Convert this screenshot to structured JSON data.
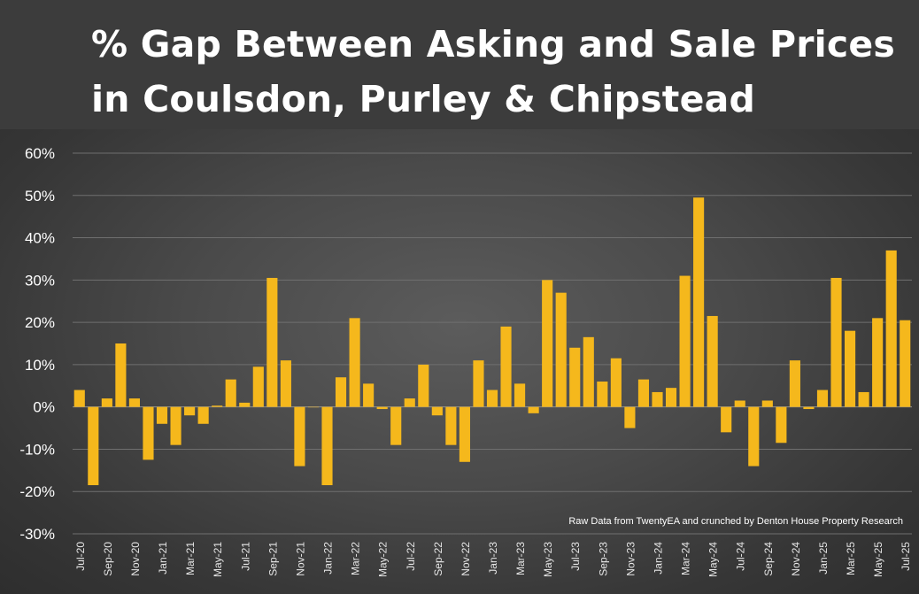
{
  "chart_data": {
    "type": "bar",
    "title": "% Gap Between Asking and Sale Prices in Coulsdon, Purley & Chipstead",
    "title_lines": [
      "% Gap Between Asking and Sale Prices",
      "in Coulsdon, Purley & Chipstead"
    ],
    "source_note": "Raw Data from TwentyEA and crunched by Denton House Property Research",
    "xlabel": "",
    "ylabel": "",
    "ylim": [
      -30,
      60
    ],
    "yticks": [
      -30,
      -20,
      -10,
      0,
      10,
      20,
      30,
      40,
      50,
      60
    ],
    "ytick_labels": [
      "-30%",
      "-20%",
      "-10%",
      "0%",
      "10%",
      "20%",
      "30%",
      "40%",
      "50%",
      "60%"
    ],
    "grid": true,
    "bar_color": "#f5b81c",
    "categories": [
      "Jul-20",
      "Aug-20",
      "Sep-20",
      "Oct-20",
      "Nov-20",
      "Dec-20",
      "Jan-21",
      "Feb-21",
      "Mar-21",
      "Apr-21",
      "May-21",
      "Jun-21",
      "Jul-21",
      "Aug-21",
      "Sep-21",
      "Oct-21",
      "Nov-21",
      "Dec-21",
      "Jan-22",
      "Feb-22",
      "Mar-22",
      "Apr-22",
      "May-22",
      "Jun-22",
      "Jul-22",
      "Aug-22",
      "Sep-22",
      "Oct-22",
      "Nov-22",
      "Dec-22",
      "Jan-23",
      "Feb-23",
      "Mar-23",
      "Apr-23",
      "May-23",
      "Jun-23",
      "Jul-23",
      "Aug-23",
      "Sep-23",
      "Oct-23",
      "Nov-23",
      "Dec-23",
      "Jan-24",
      "Feb-24",
      "Mar-24",
      "Apr-24",
      "May-24",
      "Jun-24",
      "Jul-24",
      "Aug-24",
      "Sep-24",
      "Oct-24",
      "Nov-24",
      "Dec-24",
      "Jan-25",
      "Feb-25",
      "Mar-25",
      "Apr-25",
      "May-25",
      "Jun-25",
      "Jul-25"
    ],
    "tick_labels": [
      "Jul-20",
      "",
      "Sep-20",
      "",
      "Nov-20",
      "",
      "Jan-21",
      "",
      "Mar-21",
      "",
      "May-21",
      "",
      "Jul-21",
      "",
      "Sep-21",
      "",
      "Nov-21",
      "",
      "Jan-22",
      "",
      "Mar-22",
      "",
      "May-22",
      "",
      "Jul-22",
      "",
      "Sep-22",
      "",
      "Nov-22",
      "",
      "Jan-23",
      "",
      "Mar-23",
      "",
      "May-23",
      "",
      "Jul-23",
      "",
      "Sep-23",
      "",
      "Nov-23",
      "",
      "Jan-24",
      "",
      "Mar-24",
      "",
      "May-24",
      "",
      "Jul-24",
      "",
      "Sep-24",
      "",
      "Nov-24",
      "",
      "Jan-25",
      "",
      "Mar-25",
      "",
      "May-25",
      "",
      "Jul-25"
    ],
    "values": [
      4,
      -18.5,
      2,
      15,
      2,
      -12.5,
      -4,
      -9,
      -2,
      -4,
      0.3,
      6.5,
      1,
      9.5,
      30.5,
      11,
      -14,
      0,
      -18.5,
      7,
      21,
      5.5,
      -0.5,
      -9,
      2,
      10,
      -2,
      -9,
      -13,
      11,
      4,
      19,
      5.5,
      -1.5,
      30,
      27,
      14,
      16.5,
      6,
      11.5,
      -5,
      6.5,
      3.5,
      4.5,
      31,
      49.5,
      21.5,
      -6,
      1.5,
      -14,
      1.5,
      -8.5,
      11,
      -0.5,
      4,
      30.5,
      18,
      3.5,
      21,
      37,
      20.5
    ]
  }
}
